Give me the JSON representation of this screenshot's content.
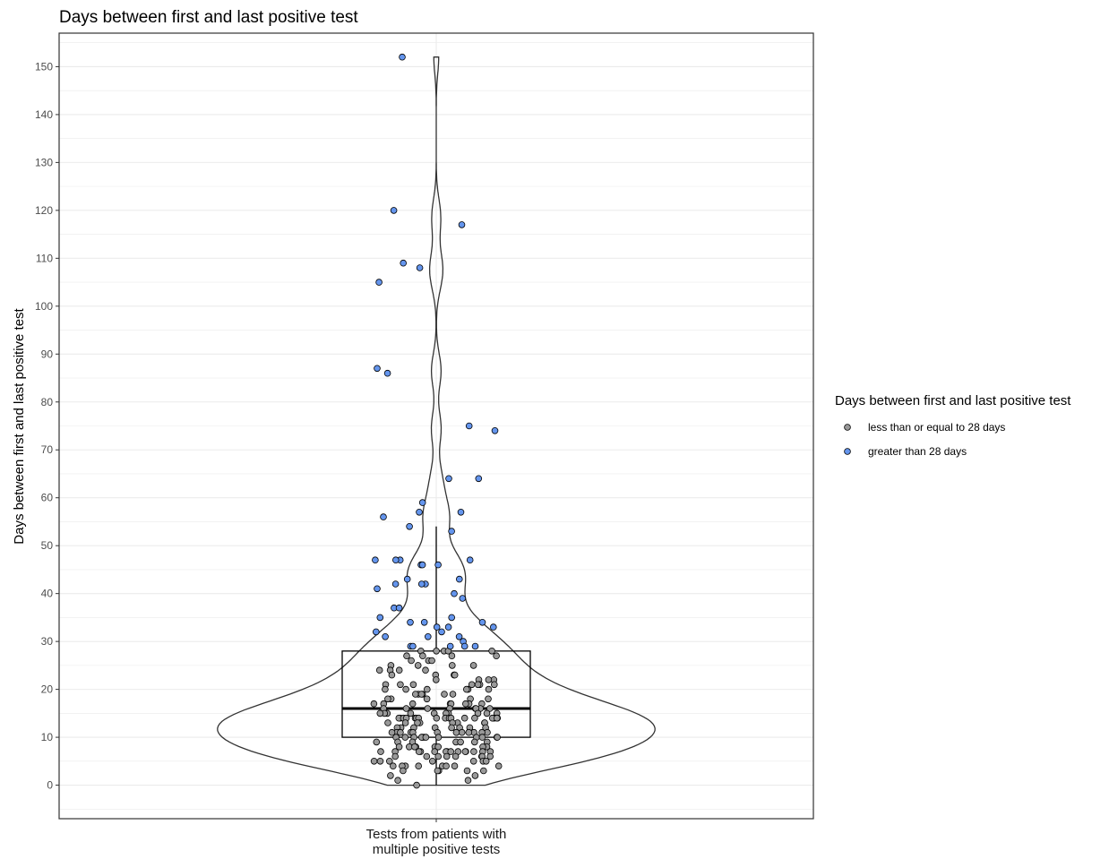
{
  "chart_data": {
    "type": "violin",
    "title": "Days between first and last positive test",
    "ylabel": "Days between first and last positive test",
    "xlabel": "",
    "categories": [
      "Tests from patients with\nmultiple positive tests"
    ],
    "ylim": [
      -7,
      157
    ],
    "yticks": [
      0,
      10,
      20,
      30,
      40,
      50,
      60,
      70,
      80,
      90,
      100,
      110,
      120,
      130,
      140,
      150
    ],
    "grid": true,
    "legend": {
      "title": "Days between first and last positive test",
      "placement": "right",
      "entries": [
        {
          "label": "less than or equal to 28 days",
          "color": "#999999"
        },
        {
          "label": "greater than 28 days",
          "color": "#6495ED"
        }
      ]
    },
    "boxplot": {
      "min": 0,
      "q1": 10,
      "median": 16,
      "q3": 28,
      "whisker_high": 54
    },
    "series": [
      {
        "name": "greater than 28 days",
        "color": "#6495ED",
        "values": [
          152,
          120,
          117,
          109,
          108,
          105,
          87,
          86,
          75,
          74,
          64,
          64,
          59,
          57,
          57,
          56,
          54,
          53,
          47,
          47,
          47,
          47,
          46,
          46,
          46,
          43,
          43,
          42,
          42,
          42,
          41,
          40,
          39,
          37,
          37,
          35,
          35,
          34,
          34,
          34,
          33,
          33,
          33,
          32,
          32,
          31,
          31,
          31,
          30,
          29,
          29,
          29,
          29,
          29
        ]
      },
      {
        "name": "less than or equal to 28 days",
        "color": "#999999",
        "values": [
          28,
          28,
          28,
          28,
          28,
          27,
          27,
          27,
          27,
          26,
          26,
          26,
          25,
          25,
          25,
          25,
          24,
          24,
          24,
          24,
          23,
          23,
          23,
          23,
          22,
          22,
          22,
          22,
          21,
          21,
          21,
          21,
          21,
          21,
          21,
          20,
          20,
          20,
          20,
          20,
          20,
          19,
          19,
          19,
          19,
          19,
          19,
          18,
          18,
          18,
          18,
          18,
          17,
          17,
          17,
          17,
          17,
          17,
          17,
          17,
          16,
          16,
          16,
          16,
          16,
          16,
          16,
          16,
          15,
          15,
          15,
          15,
          15,
          15,
          15,
          15,
          15,
          15,
          14,
          14,
          14,
          14,
          14,
          14,
          14,
          14,
          14,
          14,
          14,
          14,
          14,
          14,
          14,
          14,
          14,
          14,
          13,
          13,
          13,
          13,
          13,
          13,
          13,
          13,
          12,
          12,
          12,
          12,
          12,
          12,
          12,
          12,
          11,
          11,
          11,
          11,
          11,
          11,
          11,
          11,
          11,
          11,
          11,
          11,
          11,
          11,
          10,
          10,
          10,
          10,
          10,
          10,
          10,
          10,
          10,
          10,
          10,
          10,
          9,
          9,
          9,
          9,
          9,
          9,
          9,
          8,
          8,
          8,
          8,
          8,
          8,
          8,
          8,
          7,
          7,
          7,
          7,
          7,
          7,
          7,
          7,
          7,
          7,
          7,
          7,
          7,
          7,
          6,
          6,
          6,
          6,
          6,
          6,
          6,
          6,
          5,
          5,
          5,
          5,
          5,
          5,
          5,
          4,
          4,
          4,
          4,
          4,
          4,
          4,
          4,
          3,
          3,
          3,
          3,
          3,
          2,
          2,
          1,
          1,
          0
        ]
      }
    ]
  }
}
